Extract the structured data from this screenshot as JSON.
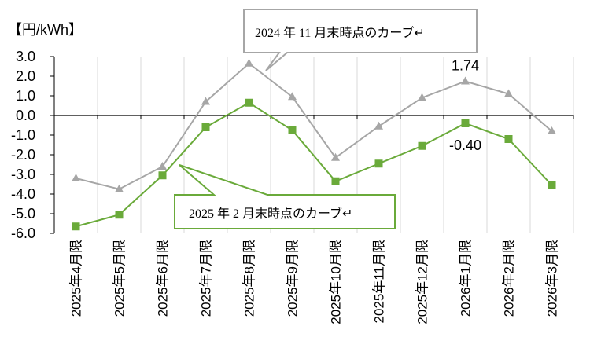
{
  "chart_data": {
    "type": "line",
    "ylabel": "【円/kWh】",
    "ylim": [
      -6.0,
      3.0
    ],
    "yticks": [
      "3.0",
      "2.0",
      "1.0",
      "0.0",
      "-1.0",
      "-2.0",
      "-3.0",
      "-4.0",
      "-5.0",
      "-6.0"
    ],
    "grid": true,
    "categories": [
      "2025年4月限",
      "2025年5月限",
      "2025年6月限",
      "2025年7月限",
      "2025年8月限",
      "2025年9月限",
      "2025年10月限",
      "2025年11月限",
      "2025年12月限",
      "2026年1月限",
      "2026年2月限",
      "2026年3月限"
    ],
    "series": [
      {
        "name": "2024 年 11 月末時点のカーブ↵",
        "color": "#a6a6a6",
        "marker": "triangle",
        "values": [
          -3.2,
          -3.75,
          -2.6,
          0.7,
          2.65,
          0.95,
          -2.15,
          -0.55,
          0.9,
          1.74,
          1.1,
          -0.8
        ]
      },
      {
        "name": "2025 年 2 月末時点のカーブ↵",
        "color": "#6aaa3a",
        "marker": "square",
        "values": [
          -5.65,
          -5.05,
          -3.05,
          -0.6,
          0.65,
          -0.75,
          -3.35,
          -2.45,
          -1.55,
          -0.4,
          -1.2,
          -3.55
        ]
      }
    ],
    "data_labels": [
      {
        "series": 0,
        "index": 9,
        "text": "1.74"
      },
      {
        "series": 1,
        "index": 9,
        "text": "-0.40"
      }
    ]
  }
}
